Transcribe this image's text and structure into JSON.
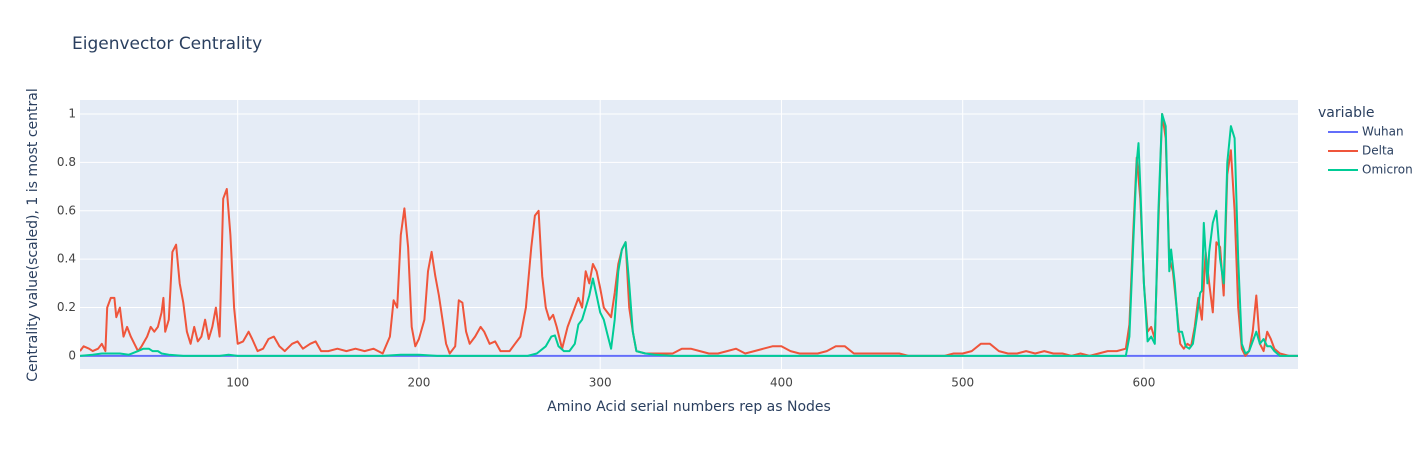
{
  "chart_data": {
    "type": "line",
    "title": "Eigenvector Centrality",
    "x_label": "Amino Acid serial numbers rep as Nodes",
    "y_label": "Centrality value(scaled), 1 is most central",
    "legend_title": "variable",
    "xlim": [
      13,
      685
    ],
    "xticks": [
      100,
      200,
      300,
      400,
      500,
      600
    ],
    "ylim": [
      -0.054,
      1.058
    ],
    "yticks": [
      0,
      0.2,
      0.4,
      0.6,
      0.8,
      1
    ],
    "grid": true,
    "legend_position": "right",
    "series": [
      {
        "name": "Wuhan",
        "color": "#636efa",
        "x": [
          13,
          685
        ],
        "values": [
          0,
          0
        ]
      },
      {
        "name": "Delta",
        "color": "#EF553B",
        "x": [
          13,
          15,
          18,
          20,
          23,
          25,
          27,
          28,
          30,
          32,
          33,
          35,
          37,
          39,
          41,
          43,
          45,
          47,
          50,
          52,
          54,
          56,
          58,
          59,
          60,
          62,
          64,
          66,
          68,
          70,
          72,
          74,
          76,
          78,
          80,
          82,
          84,
          86,
          88,
          90,
          92,
          94,
          96,
          98,
          100,
          103,
          106,
          108,
          111,
          114,
          117,
          120,
          123,
          126,
          130,
          133,
          136,
          140,
          143,
          146,
          150,
          155,
          160,
          165,
          170,
          175,
          180,
          184,
          186,
          188,
          190,
          192,
          194,
          196,
          198,
          200,
          203,
          205,
          207,
          209,
          211,
          213,
          215,
          217,
          220,
          222,
          224,
          226,
          228,
          231,
          234,
          236,
          239,
          242,
          245,
          250,
          253,
          256,
          259,
          262,
          264,
          266,
          268,
          270,
          272,
          274,
          276,
          279,
          282,
          285,
          288,
          290,
          292,
          294,
          296,
          298,
          300,
          302,
          304,
          306,
          308,
          310,
          312,
          314,
          316,
          318,
          320,
          325,
          330,
          335,
          340,
          345,
          350,
          355,
          360,
          365,
          370,
          375,
          380,
          385,
          390,
          395,
          400,
          405,
          410,
          415,
          420,
          425,
          430,
          435,
          440,
          445,
          450,
          455,
          460,
          465,
          470,
          480,
          490,
          495,
          500,
          505,
          510,
          515,
          520,
          525,
          530,
          535,
          540,
          545,
          550,
          555,
          560,
          565,
          570,
          575,
          580,
          585,
          590,
          592,
          594,
          596,
          598,
          600,
          602,
          604,
          606,
          608,
          610,
          612,
          614,
          616,
          618,
          620,
          622,
          624,
          626,
          628,
          630,
          632,
          634,
          636,
          638,
          640,
          642,
          644,
          646,
          648,
          650,
          652,
          654,
          656,
          658,
          660,
          662,
          664,
          666,
          668,
          670,
          672,
          675,
          680,
          685
        ],
        "values": [
          0.02,
          0.04,
          0.03,
          0.02,
          0.03,
          0.05,
          0.02,
          0.2,
          0.24,
          0.24,
          0.16,
          0.2,
          0.08,
          0.12,
          0.08,
          0.05,
          0.02,
          0.04,
          0.08,
          0.12,
          0.1,
          0.12,
          0.18,
          0.24,
          0.1,
          0.15,
          0.43,
          0.46,
          0.3,
          0.22,
          0.1,
          0.05,
          0.12,
          0.06,
          0.08,
          0.15,
          0.07,
          0.12,
          0.2,
          0.08,
          0.65,
          0.69,
          0.5,
          0.2,
          0.05,
          0.06,
          0.1,
          0.07,
          0.02,
          0.03,
          0.07,
          0.08,
          0.04,
          0.02,
          0.05,
          0.06,
          0.03,
          0.05,
          0.06,
          0.02,
          0.02,
          0.03,
          0.02,
          0.03,
          0.02,
          0.03,
          0.01,
          0.08,
          0.23,
          0.2,
          0.5,
          0.61,
          0.45,
          0.12,
          0.04,
          0.07,
          0.15,
          0.35,
          0.43,
          0.33,
          0.25,
          0.15,
          0.05,
          0.01,
          0.04,
          0.23,
          0.22,
          0.1,
          0.05,
          0.08,
          0.12,
          0.1,
          0.05,
          0.06,
          0.02,
          0.02,
          0.05,
          0.08,
          0.2,
          0.45,
          0.58,
          0.6,
          0.33,
          0.2,
          0.15,
          0.17,
          0.12,
          0.03,
          0.12,
          0.18,
          0.24,
          0.2,
          0.35,
          0.3,
          0.38,
          0.35,
          0.28,
          0.2,
          0.18,
          0.16,
          0.26,
          0.38,
          0.44,
          0.47,
          0.2,
          0.1,
          0.02,
          0.01,
          0.01,
          0.01,
          0.01,
          0.03,
          0.03,
          0.02,
          0.01,
          0.01,
          0.02,
          0.03,
          0.01,
          0.02,
          0.03,
          0.04,
          0.04,
          0.02,
          0.01,
          0.01,
          0.01,
          0.02,
          0.04,
          0.04,
          0.01,
          0.01,
          0.01,
          0.01,
          0.01,
          0.01,
          0,
          0,
          0,
          0.01,
          0.01,
          0.02,
          0.05,
          0.05,
          0.02,
          0.01,
          0.01,
          0.02,
          0.01,
          0.02,
          0.01,
          0.01,
          0,
          0.01,
          0,
          0.01,
          0.02,
          0.02,
          0.03,
          0.13,
          0.5,
          0.82,
          0.65,
          0.3,
          0.1,
          0.12,
          0.07,
          0.55,
          1,
          0.9,
          0.4,
          0.35,
          0.2,
          0.05,
          0.03,
          0.05,
          0.04,
          0.12,
          0.24,
          0.15,
          0.43,
          0.3,
          0.18,
          0.47,
          0.45,
          0.25,
          0.75,
          0.85,
          0.6,
          0.2,
          0.03,
          0,
          0.02,
          0.1,
          0.25,
          0.05,
          0.02,
          0.1,
          0.07,
          0.03,
          0.01,
          0,
          0
        ]
      },
      {
        "name": "Omicron",
        "color": "#00cc96",
        "x": [
          13,
          20,
          25,
          30,
          35,
          40,
          45,
          48,
          51,
          53,
          56,
          58,
          62,
          70,
          90,
          95,
          100,
          180,
          190,
          200,
          210,
          260,
          265,
          270,
          273,
          275,
          277,
          280,
          283,
          286,
          288,
          290,
          292,
          294,
          296,
          298,
          300,
          302,
          304,
          306,
          308,
          310,
          312,
          314,
          316,
          318,
          320,
          325,
          330,
          340,
          590,
          592,
          594,
          596,
          597,
          598,
          600,
          602,
          604,
          606,
          608,
          610,
          612,
          614,
          615,
          617,
          619,
          621,
          623,
          625,
          627,
          629,
          631,
          632,
          633,
          635,
          636,
          638,
          640,
          642,
          644,
          646,
          648,
          650,
          652,
          654,
          656,
          658,
          660,
          662,
          664,
          666,
          668,
          670,
          672,
          675,
          685
        ],
        "values": [
          0,
          0.005,
          0.01,
          0.01,
          0.01,
          0.005,
          0.02,
          0.03,
          0.03,
          0.02,
          0.02,
          0.01,
          0.005,
          0,
          0,
          0.005,
          0,
          0,
          0.005,
          0.005,
          0,
          0,
          0.01,
          0.04,
          0.08,
          0.085,
          0.04,
          0.02,
          0.02,
          0.05,
          0.13,
          0.15,
          0.2,
          0.25,
          0.32,
          0.25,
          0.18,
          0.15,
          0.09,
          0.03,
          0.15,
          0.35,
          0.44,
          0.47,
          0.3,
          0.1,
          0.02,
          0.01,
          0.005,
          0,
          0,
          0.08,
          0.45,
          0.8,
          0.88,
          0.7,
          0.3,
          0.06,
          0.08,
          0.05,
          0.6,
          1,
          0.95,
          0.35,
          0.44,
          0.3,
          0.1,
          0.1,
          0.04,
          0.03,
          0.05,
          0.15,
          0.26,
          0.27,
          0.55,
          0.3,
          0.43,
          0.55,
          0.6,
          0.4,
          0.3,
          0.8,
          0.95,
          0.9,
          0.4,
          0.05,
          0.01,
          0.02,
          0.06,
          0.1,
          0.05,
          0.07,
          0.04,
          0.04,
          0.02,
          0,
          0
        ]
      }
    ]
  }
}
